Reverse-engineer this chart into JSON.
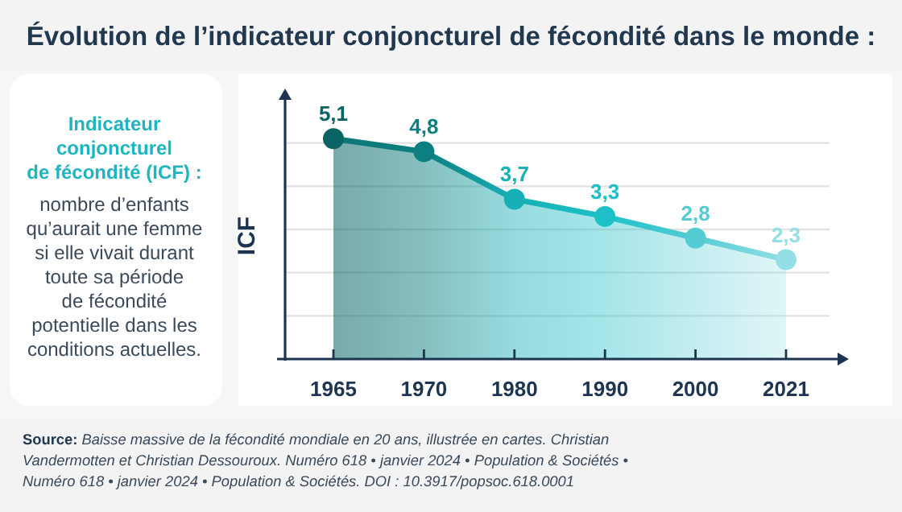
{
  "chart_data": {
    "type": "area",
    "title": "Évolution de l’indicateur conjoncturel de fécondité dans le monde :",
    "ylabel": "ICF",
    "categories": [
      "1965",
      "1970",
      "1980",
      "1990",
      "2000",
      "2021"
    ],
    "series": [
      {
        "color": "#0e7676",
        "colors": [
          "#0b6464",
          "#0e7f80",
          "#17b0b6",
          "#1ec0c8",
          "#55ccd3",
          "#93dfe5"
        ],
        "values": [
          5.1,
          4.8,
          3.7,
          3.3,
          2.8,
          2.3
        ],
        "value_labels": [
          "5,1",
          "4,8",
          "3,7",
          "3,3",
          "2,8",
          "2,3"
        ]
      }
    ],
    "ylim": [
      0,
      6
    ],
    "yticks": [
      {
        "value": 1,
        "label": null
      },
      {
        "value": 2,
        "label": null
      },
      {
        "value": 3,
        "label": null
      },
      {
        "value": 4,
        "label": null
      },
      {
        "value": 5,
        "label": null
      }
    ],
    "grid": "y",
    "marker": "circle",
    "line_style": "solid",
    "tick_labels": "x",
    "annotations": [
      "Indicateur\nconjoncturel\nde fécondité (ICF) :",
      "nombre d’enfants\nqu’aurait une femme\nsi elle vivait durant\ntoute sa période\nde fécondité\npotentielle dans les\nconditions actuelles.",
      "Source:  Baisse massive de la fécondité mondiale en 20 ans, illustrée en cartes. Christian\nVandermotten et Christian Dessouroux. Numéro 618 • janvier 2024 • Population & Sociétés •\nNuméro 618 • janvier 2024 • Population & Sociétés. DOI : 10.3917/popsoc.618.0001"
    ]
  }
}
